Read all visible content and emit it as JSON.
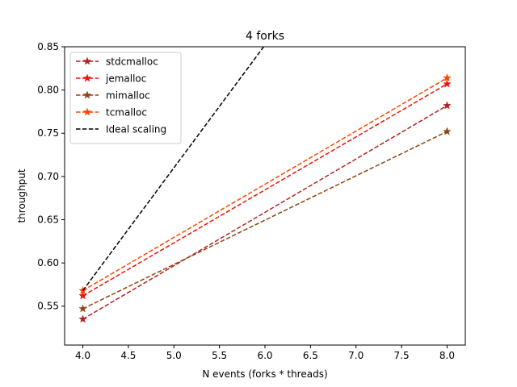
{
  "chart_data": {
    "type": "line",
    "title": "4 forks",
    "xlabel": "N events (forks * threads)",
    "ylabel": "throughput",
    "xlim": [
      3.8,
      8.2
    ],
    "ylim": [
      0.505,
      0.85
    ],
    "xticks": [
      4.0,
      4.5,
      5.0,
      5.5,
      6.0,
      6.5,
      7.0,
      7.5,
      8.0
    ],
    "xtick_labels": [
      "4.0",
      "4.5",
      "5.0",
      "5.5",
      "6.0",
      "6.5",
      "7.0",
      "7.5",
      "8.0"
    ],
    "yticks": [
      0.55,
      0.6,
      0.65,
      0.7,
      0.75,
      0.8,
      0.85
    ],
    "ytick_labels": [
      "0.55",
      "0.60",
      "0.65",
      "0.70",
      "0.75",
      "0.80",
      "0.85"
    ],
    "grid": false,
    "legend_position": "top-left",
    "series": [
      {
        "name": "stdcmalloc",
        "x": [
          4,
          8
        ],
        "y": [
          0.535,
          0.782
        ],
        "color": "#b22222",
        "marker": "star",
        "dash": "dashed"
      },
      {
        "name": "jemalloc",
        "x": [
          4,
          8
        ],
        "y": [
          0.562,
          0.807
        ],
        "color": "#e8150b",
        "marker": "star",
        "dash": "dashed"
      },
      {
        "name": "mimalloc",
        "x": [
          4,
          8
        ],
        "y": [
          0.547,
          0.752
        ],
        "color": "#8b4513",
        "marker": "star",
        "dash": "dashed"
      },
      {
        "name": "tcmalloc",
        "x": [
          4,
          8
        ],
        "y": [
          0.568,
          0.814
        ],
        "color": "#ff4500",
        "marker": "star",
        "dash": "dashed"
      },
      {
        "name": "Ideal scaling",
        "x": [
          4,
          8
        ],
        "y": [
          0.568,
          1.136
        ],
        "color": "#000000",
        "marker": "none",
        "dash": "dashed"
      }
    ]
  }
}
